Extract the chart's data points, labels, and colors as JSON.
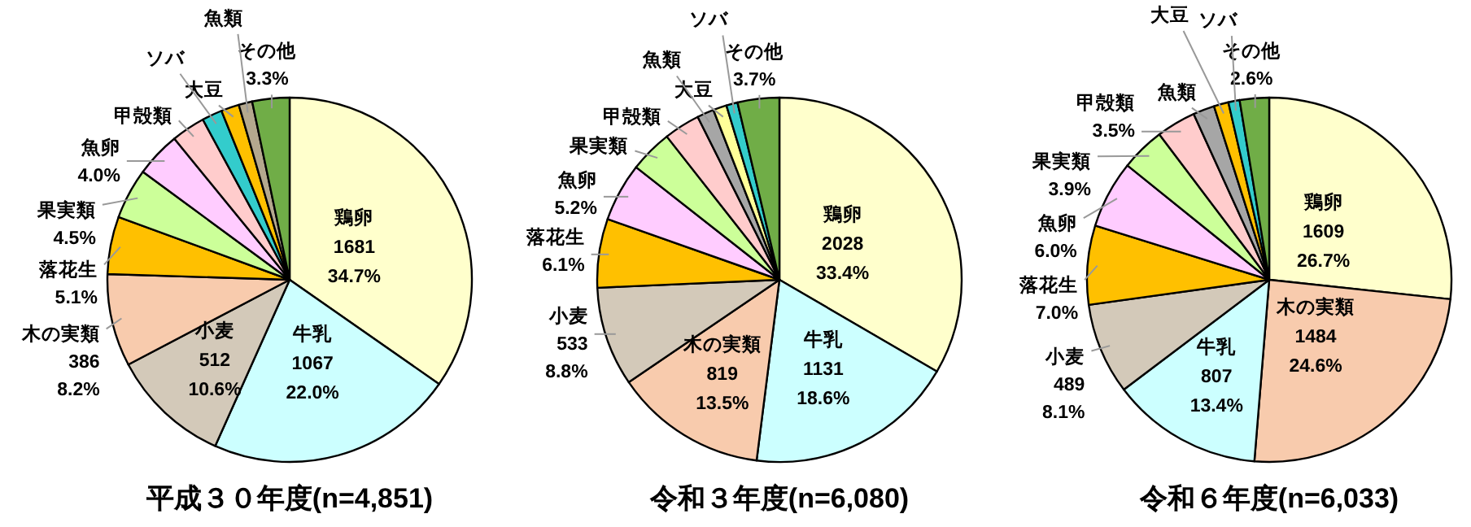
{
  "chart_data": [
    {
      "type": "pie",
      "title": "平成３０年度(n=4,851)",
      "categories": [
        "鶏卵",
        "牛乳",
        "小麦",
        "木の実類",
        "落花生",
        "果実類",
        "魚卵",
        "甲殻類",
        "ソバ",
        "大豆",
        "魚類",
        "その他"
      ],
      "values": [
        34.7,
        22.0,
        10.6,
        8.2,
        5.1,
        4.5,
        4.0,
        3.0,
        1.8,
        1.6,
        1.2,
        3.3
      ],
      "value_labels": [
        "1681 34.7%",
        "1067 22.0%",
        "512 10.6%",
        "386 8.2%",
        "5.1%",
        "4.5%",
        "4.0%",
        null,
        null,
        null,
        null,
        "3.3%"
      ],
      "colors": [
        "#ffffcc",
        "#ccffff",
        "#d3c9b9",
        "#f8cbad",
        "#ffc000",
        "#ccff99",
        "#ffccff",
        "#ffcccc",
        "#33cccc",
        "#ffc000",
        "#b4a88e",
        "#70ad47"
      ]
    },
    {
      "type": "pie",
      "title": "令和３年度(n=6,080)",
      "categories": [
        "鶏卵",
        "牛乳",
        "木の実類",
        "小麦",
        "落花生",
        "魚卵",
        "果実類",
        "甲殻類",
        "魚類",
        "大豆",
        "ソバ",
        "その他"
      ],
      "values": [
        33.4,
        18.6,
        13.5,
        8.8,
        6.1,
        5.2,
        3.8,
        3.2,
        1.5,
        1.2,
        1.0,
        3.7
      ],
      "value_labels": [
        "2028 33.4%",
        "1131 18.6%",
        "819 13.5%",
        "533 8.8%",
        "6.1%",
        "5.2%",
        null,
        null,
        null,
        null,
        null,
        "3.7%"
      ],
      "colors": [
        "#ffffcc",
        "#ccffff",
        "#f8cbad",
        "#d3c9b9",
        "#ffc000",
        "#ffccff",
        "#ccff99",
        "#ffcccc",
        "#a6a6a6",
        "#ffff99",
        "#33cccc",
        "#70ad47"
      ]
    },
    {
      "type": "pie",
      "title": "令和６年度(n=6,033)",
      "categories": [
        "鶏卵",
        "木の実類",
        "牛乳",
        "小麦",
        "落花生",
        "魚卵",
        "果実類",
        "甲殻類",
        "魚類",
        "大豆",
        "ソバ",
        "その他"
      ],
      "values": [
        26.7,
        24.6,
        13.4,
        8.1,
        7.0,
        6.0,
        3.9,
        3.5,
        1.9,
        1.3,
        1.0,
        2.6
      ],
      "value_labels": [
        "1609 26.7%",
        "1484 24.6%",
        "807 13.4%",
        "489 8.1%",
        "7.0%",
        "6.0%",
        "3.9%",
        "3.5%",
        null,
        null,
        null,
        "2.6%"
      ],
      "colors": [
        "#ffffcc",
        "#f8cbad",
        "#ccffff",
        "#d3c9b9",
        "#ffc000",
        "#ffccff",
        "#ccff99",
        "#ffcccc",
        "#a6a6a6",
        "#ffc000",
        "#33cccc",
        "#70ad47"
      ]
    }
  ]
}
